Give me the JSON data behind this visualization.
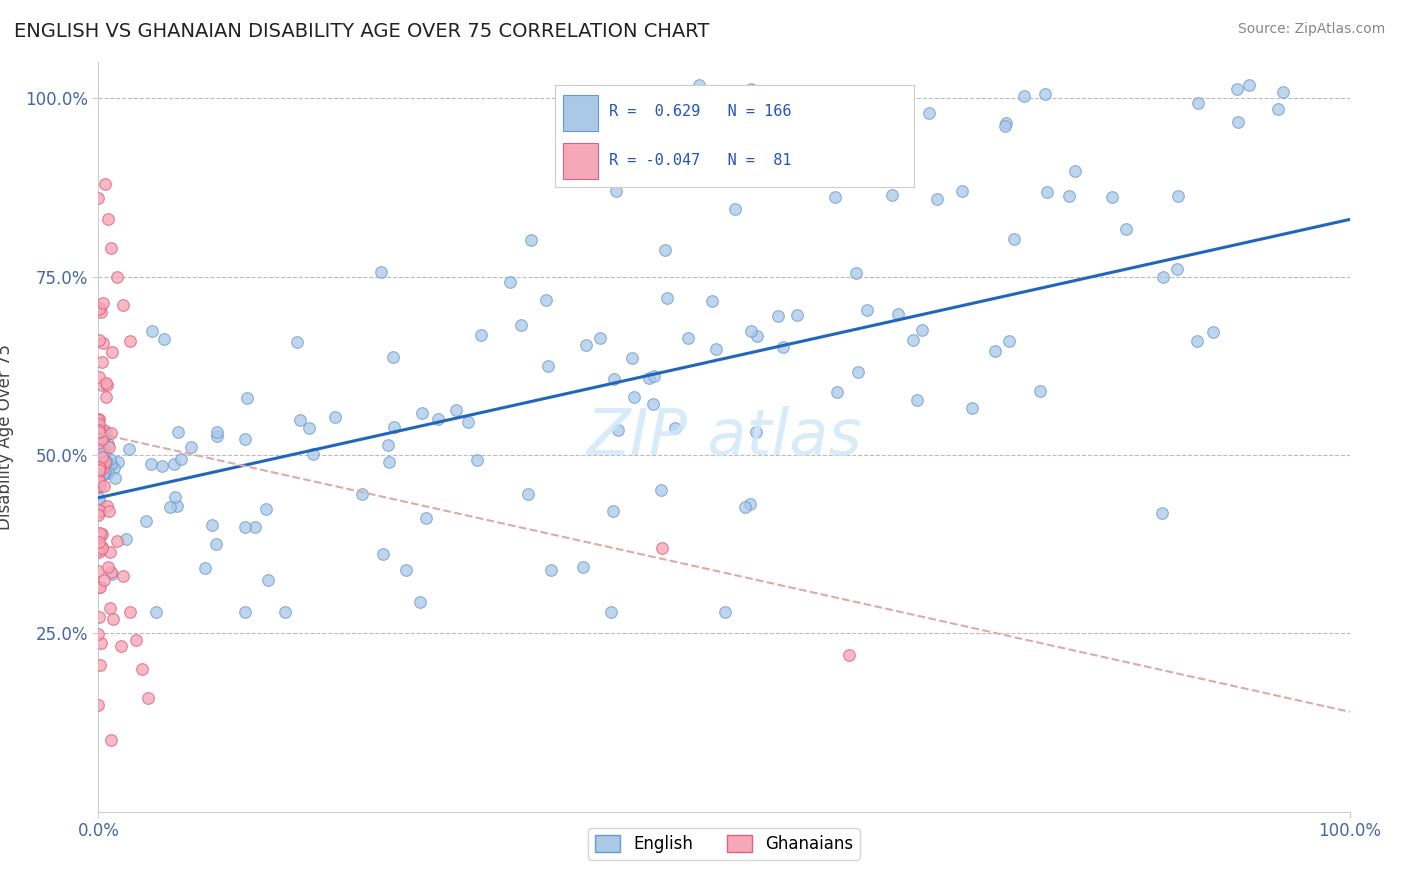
{
  "title": "ENGLISH VS GHANAIAN DISABILITY AGE OVER 75 CORRELATION CHART",
  "source": "Source: ZipAtlas.com",
  "ylabel": "Disability Age Over 75",
  "english_R": 0.629,
  "english_N": 166,
  "ghanaian_R": -0.047,
  "ghanaian_N": 81,
  "english_color": "#aac8e8",
  "english_edge_color": "#6699cc",
  "ghanaian_color": "#f5a8b8",
  "ghanaian_edge_color": "#e06080",
  "english_line_color": "#2266bb",
  "ghanaian_line_color": "#ddaaaa",
  "background_color": "#ffffff",
  "watermark_color": "#d0e8f8",
  "xlim": [
    0.0,
    1.0
  ],
  "ylim": [
    0.0,
    1.05
  ],
  "yticks": [
    0.25,
    0.5,
    0.75,
    1.0
  ],
  "ytick_labels": [
    "25.0%",
    "50.0%",
    "75.0%",
    "100.0%"
  ],
  "xticks": [
    0.0,
    1.0
  ],
  "xtick_labels": [
    "0.0%",
    "100.0%"
  ],
  "eng_line_x0": 0.0,
  "eng_line_y0": 0.44,
  "eng_line_x1": 1.0,
  "eng_line_y1": 0.83,
  "gha_line_x0": 0.0,
  "gha_line_y0": 0.53,
  "gha_line_x1": 1.0,
  "gha_line_y1": 0.14,
  "title_fontsize": 14,
  "axis_label_color": "#4466aa",
  "tick_color": "#4466aa"
}
